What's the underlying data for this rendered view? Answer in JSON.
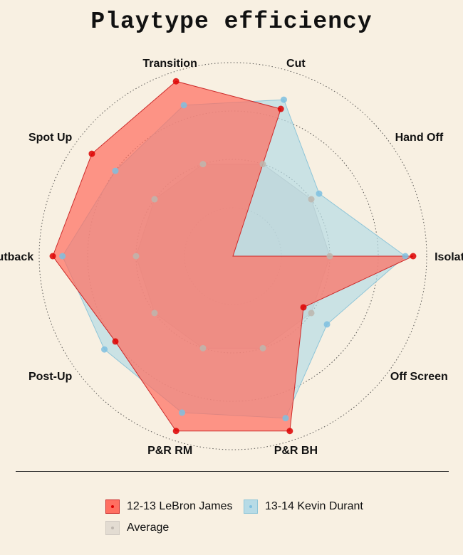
{
  "chart_data": {
    "type": "radar",
    "title": "Playtype efficiency",
    "axes": [
      "Isolation",
      "Hand Off",
      "Cut",
      "Transition",
      "Spot Up",
      "Putback",
      "Post-Up",
      "P&R RM",
      "P&R BH",
      "Off Screen"
    ],
    "series": [
      {
        "name": "12-13 LeBron James",
        "values": [
          0.93,
          0.0,
          0.8,
          0.95,
          0.9,
          0.93,
          0.75,
          0.95,
          0.95,
          0.45
        ],
        "fill": "#ff6f61",
        "stroke": "#cc2a2a",
        "point": "#dd0000"
      },
      {
        "name": "13-14 Kevin Durant",
        "values": [
          0.89,
          0.55,
          0.85,
          0.82,
          0.75,
          0.88,
          0.82,
          0.85,
          0.88,
          0.6
        ],
        "fill": "#b7dbe6",
        "stroke": "#8ec5d8",
        "point": "#7ec0e0"
      },
      {
        "name": "Average",
        "values": [
          0.5,
          0.5,
          0.5,
          0.5,
          0.5,
          0.5,
          0.5,
          0.5,
          0.5,
          0.5
        ],
        "fill": "#cfc8c0",
        "stroke": "#b9b2aa",
        "point": "#bdb6ae"
      }
    ],
    "rlim": [
      0,
      1
    ],
    "grid_rings": [
      0.25,
      0.5,
      0.75,
      1.0
    ],
    "legend": "bottom"
  }
}
